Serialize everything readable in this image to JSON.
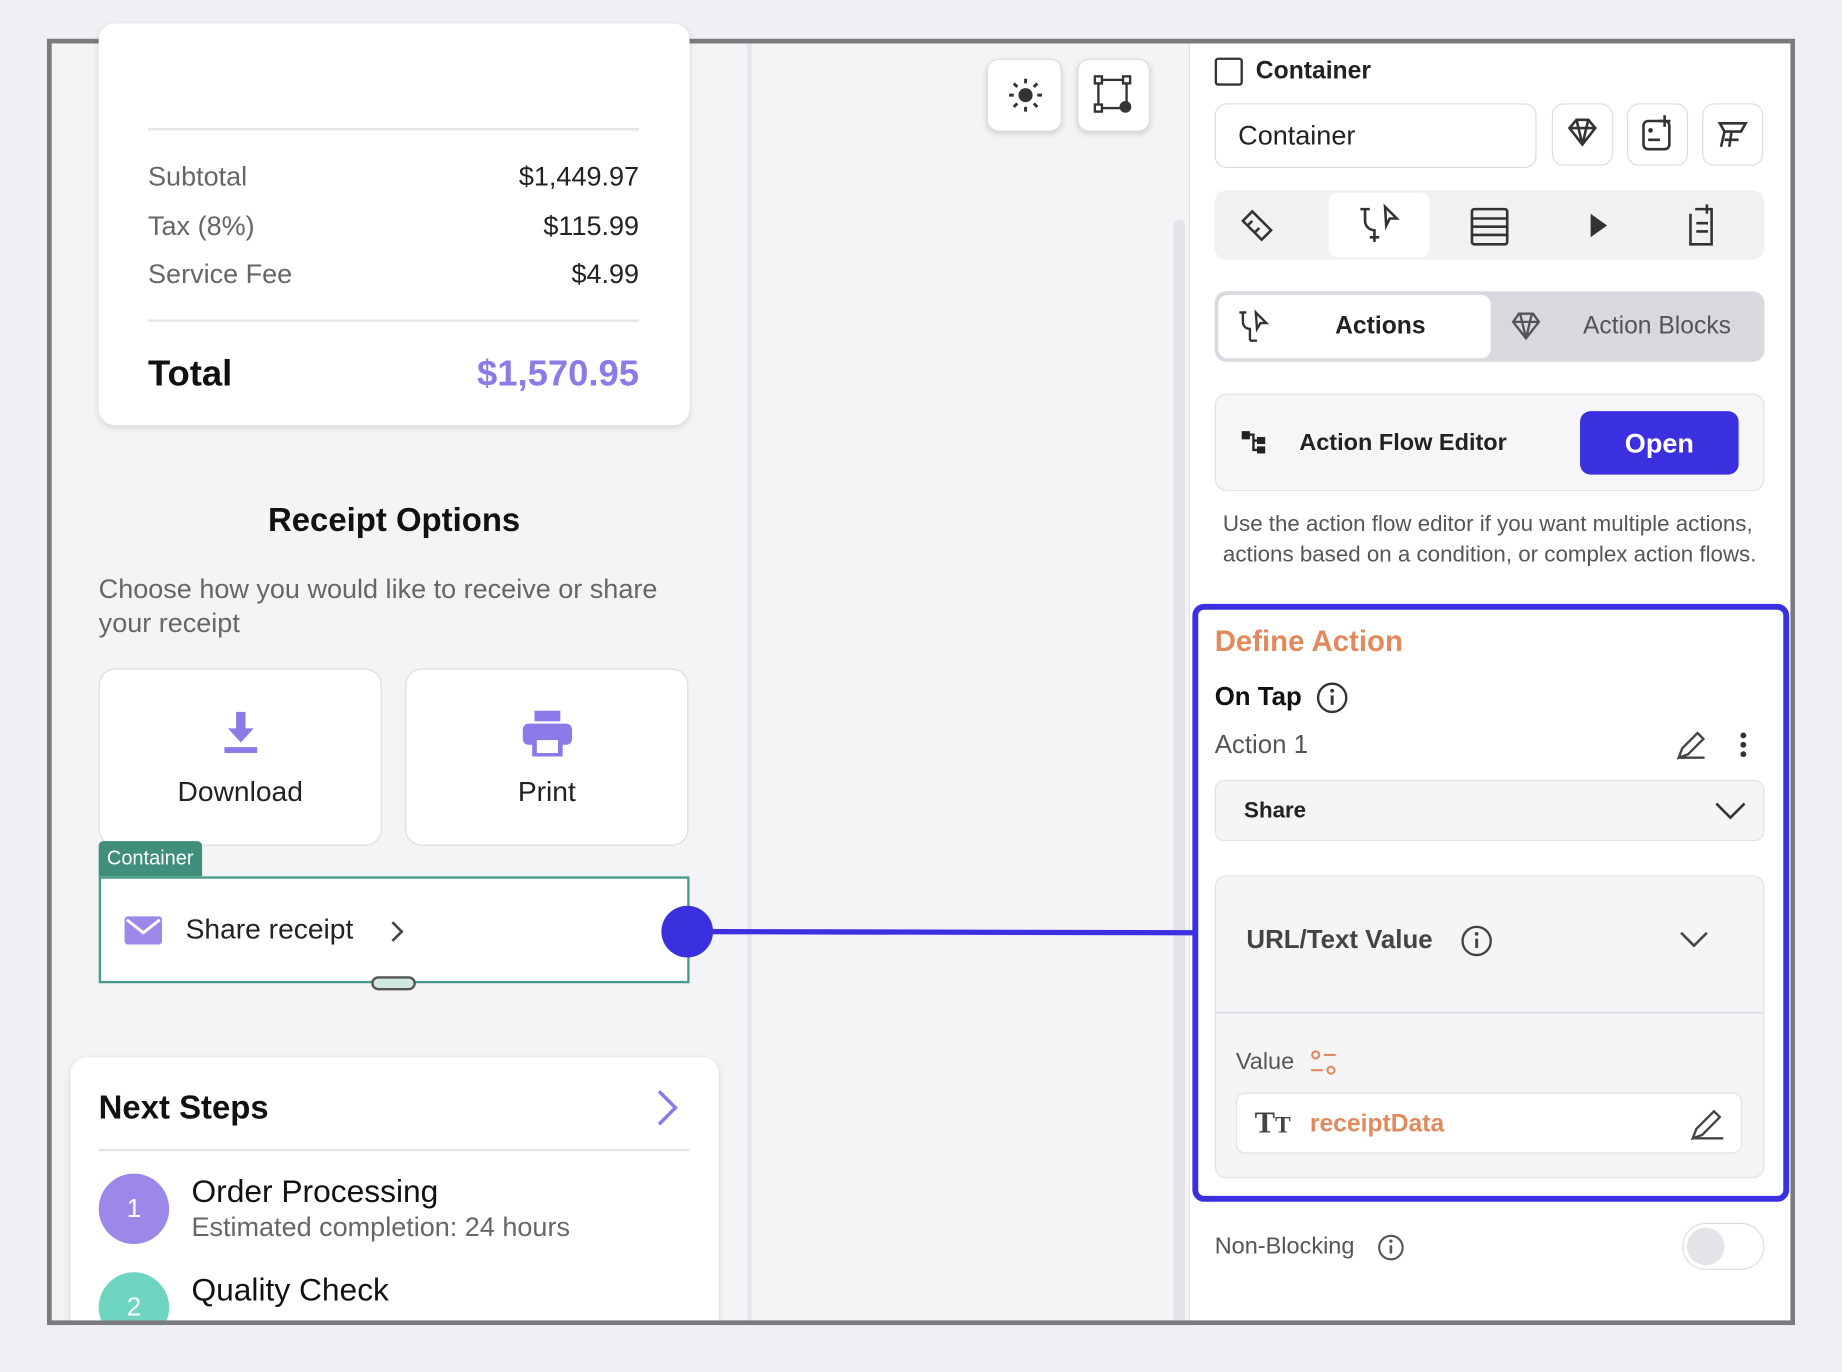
{
  "summary": {
    "rows": [
      {
        "label": "Subtotal",
        "value": "$1,449.97"
      },
      {
        "label": "Tax (8%)",
        "value": "$115.99"
      },
      {
        "label": "Service Fee",
        "value": "$4.99"
      }
    ],
    "total_label": "Total",
    "total_value": "$1,570.95"
  },
  "receipt_options": {
    "title": "Receipt Options",
    "description": "Choose how you would like to receive or share your receipt",
    "download": "Download",
    "print": "Print",
    "container_tag": "Container",
    "share": "Share receipt"
  },
  "next_steps": {
    "title": "Next Steps",
    "steps": [
      {
        "number": "1",
        "title": "Order Processing",
        "subtitle": "Estimated completion: 24 hours"
      },
      {
        "number": "2",
        "title": "Quality Check"
      }
    ]
  },
  "panel": {
    "checkbox_label": "Container",
    "name_input": "Container",
    "tabs": {
      "actions": "Actions",
      "action_blocks": "Action Blocks"
    },
    "flow_editor": {
      "label": "Action Flow Editor",
      "button": "Open"
    },
    "help": "Use the action flow editor if you want multiple actions, actions based on a condition, or complex action flows.",
    "define_action": {
      "title": "Define Action",
      "trigger": "On Tap",
      "action_name": "Action 1",
      "action_type": "Share",
      "param_title": "URL/Text Value",
      "value_label": "Value",
      "value": "receiptData"
    },
    "non_blocking": "Non-Blocking"
  }
}
